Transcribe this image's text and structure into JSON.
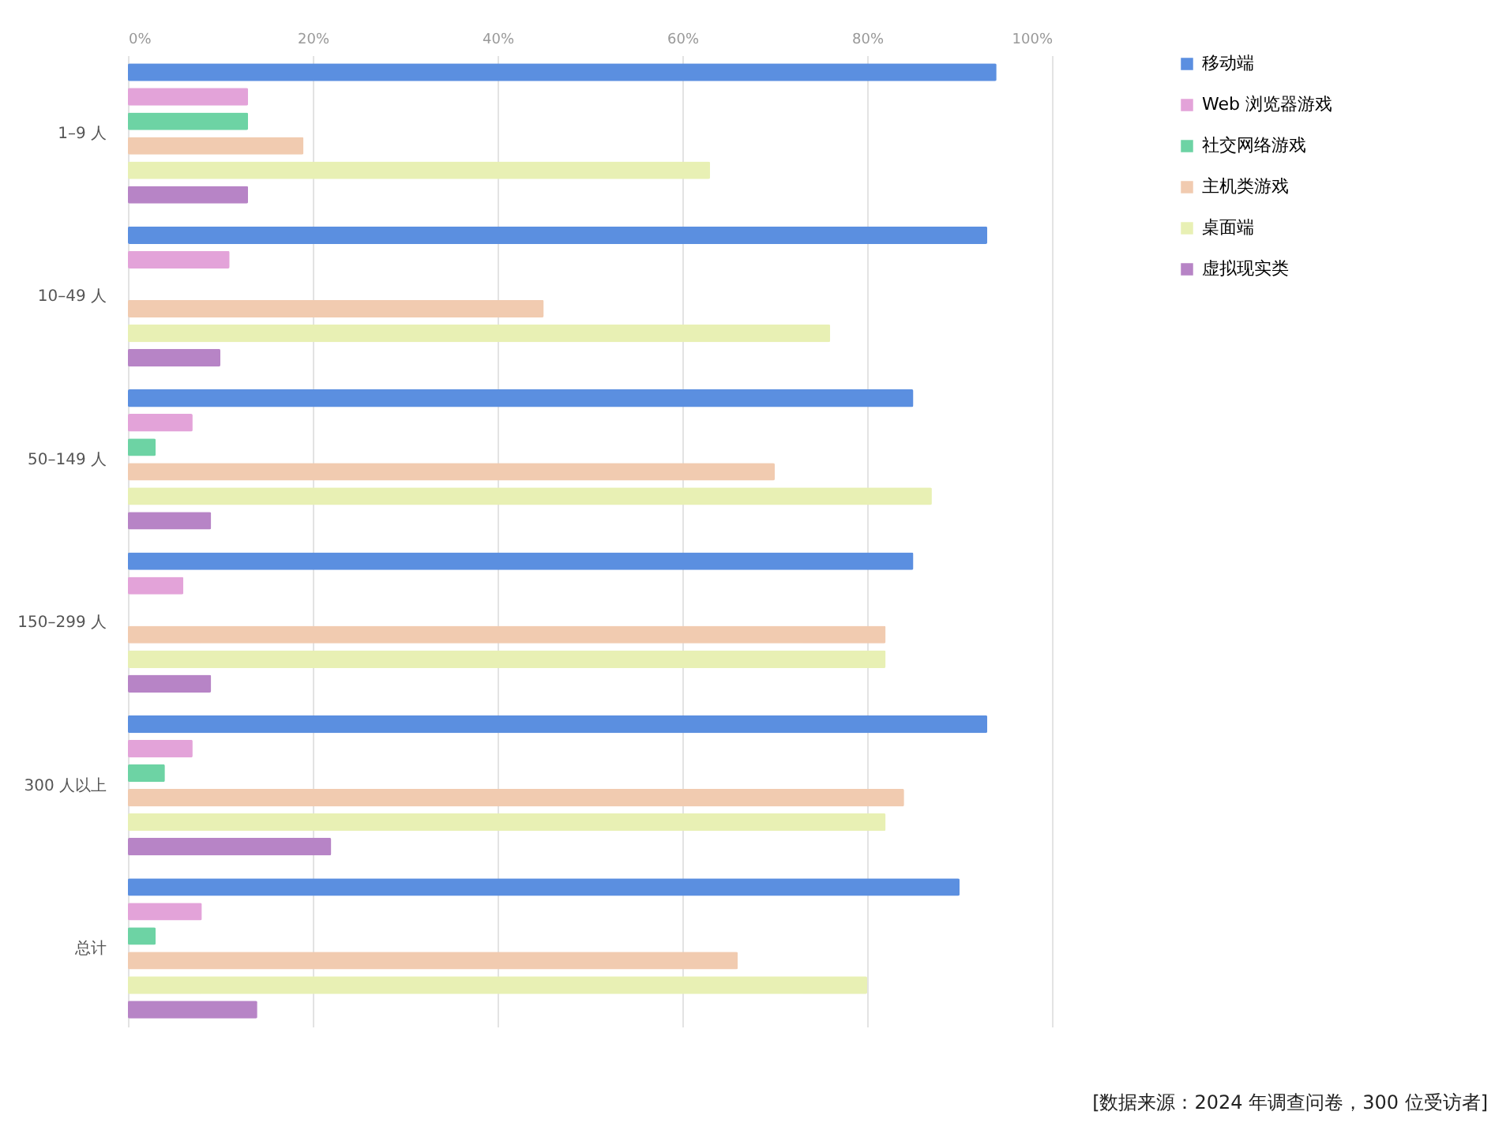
{
  "chart_data": {
    "type": "bar",
    "orientation": "horizontal",
    "categories": [
      "1–9 人",
      "10–49 人",
      "50–149 人",
      "150–299 人",
      "300 人以上",
      "总计"
    ],
    "series": [
      {
        "name": "移动端",
        "color": "#5b8fe0",
        "values": [
          94,
          93,
          85,
          85,
          93,
          90
        ]
      },
      {
        "name": "Web 浏览器游戏",
        "color": "#e3a3d9",
        "values": [
          13,
          11,
          7,
          6,
          7,
          8
        ]
      },
      {
        "name": "社交网络游戏",
        "color": "#6dd3a4",
        "values": [
          13,
          null,
          3,
          null,
          4,
          3
        ]
      },
      {
        "name": "主机类游戏",
        "color": "#f1cbb0",
        "values": [
          19,
          45,
          70,
          82,
          84,
          66
        ]
      },
      {
        "name": "桌面端",
        "color": "#e8f0b4",
        "values": [
          63,
          76,
          87,
          82,
          82,
          80
        ]
      },
      {
        "name": "虚拟现实类",
        "color": "#b784c6",
        "values": [
          13,
          10,
          9,
          9,
          22,
          14
        ]
      }
    ],
    "xlim": [
      0,
      100
    ],
    "xticks": [
      {
        "value": 0,
        "label": "0%"
      },
      {
        "value": 20,
        "label": "20%"
      },
      {
        "value": 40,
        "label": "40%"
      },
      {
        "value": 60,
        "label": "60%"
      },
      {
        "value": 80,
        "label": "80%"
      },
      {
        "value": 100,
        "label": "100%"
      }
    ],
    "grid": "x",
    "legend": "top right",
    "annotations": [
      "[数据来源：2024 年调查问卷，300 位受访者]"
    ]
  }
}
